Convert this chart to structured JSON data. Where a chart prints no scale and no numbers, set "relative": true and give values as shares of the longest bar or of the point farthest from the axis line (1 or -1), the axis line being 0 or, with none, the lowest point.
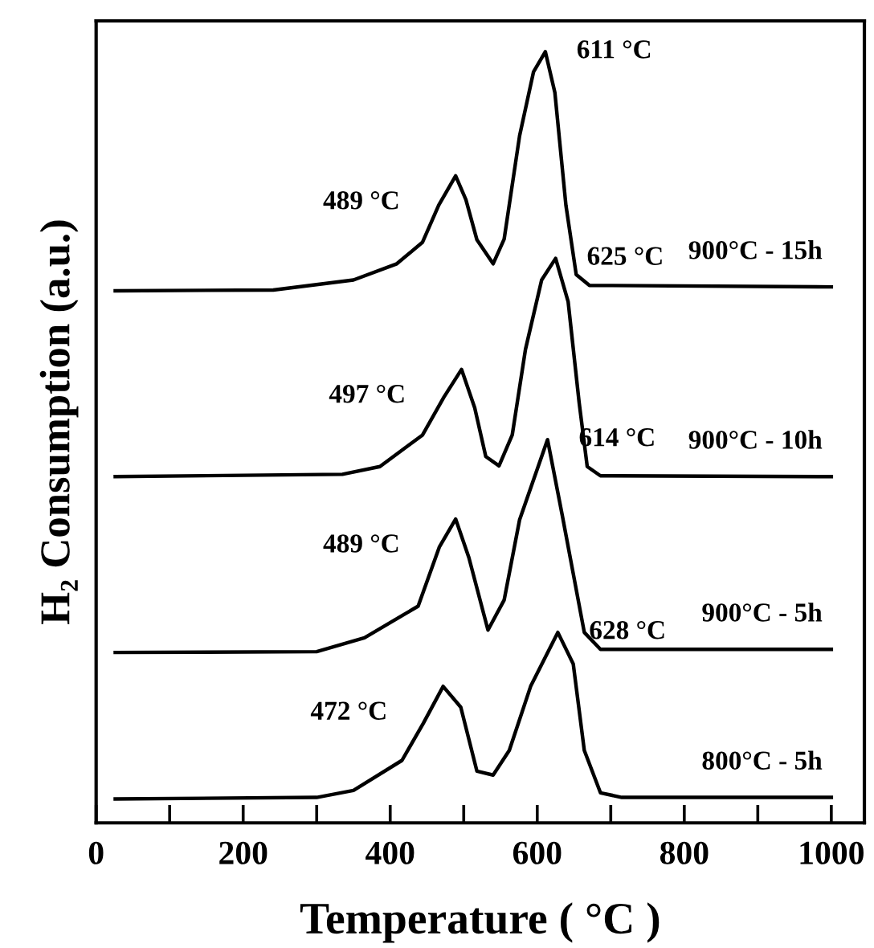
{
  "chart_data": {
    "type": "line",
    "relative": true,
    "xlabel": "Temperature ( °C )",
    "ylabel": "H₂ Consumption (a.u.)",
    "xlim": [
      0,
      1045
    ],
    "xticks": [
      0,
      {
        "value": 100,
        "label": null
      },
      200,
      {
        "value": 300,
        "label": null
      },
      400,
      {
        "value": 500,
        "label": null
      },
      600,
      {
        "value": 700,
        "label": null
      },
      800,
      {
        "value": 900,
        "label": null
      },
      1000
    ],
    "grid": false,
    "legend": false,
    "marker": "none",
    "line_style": "solid",
    "series": [
      {
        "name": "900°C - 15h",
        "color": "#000000",
        "x": [
          26,
          241,
          350,
          409,
          444,
          466,
          489,
          503,
          518,
          540,
          555,
          576,
          595,
          611,
          624,
          639,
          653,
          671,
          1000
        ],
        "values": [
          0.69,
          0.691,
          0.704,
          0.725,
          0.753,
          0.801,
          0.839,
          0.808,
          0.756,
          0.725,
          0.757,
          0.891,
          0.974,
          1.0,
          0.947,
          0.801,
          0.711,
          0.697,
          0.695
        ]
      },
      {
        "name": "900°C - 10h",
        "color": "#000000",
        "x": [
          26,
          335,
          386,
          444,
          473,
          497,
          515,
          530,
          548,
          566,
          584,
          606,
          625,
          642,
          657,
          668,
          686,
          1000
        ],
        "values": [
          0.449,
          0.452,
          0.462,
          0.503,
          0.552,
          0.588,
          0.538,
          0.475,
          0.463,
          0.503,
          0.614,
          0.704,
          0.732,
          0.676,
          0.545,
          0.462,
          0.45,
          0.449
        ]
      },
      {
        "name": "900°C - 5h",
        "color": "#000000",
        "x": [
          26,
          300,
          365,
          438,
          467,
          489,
          507,
          533,
          555,
          576,
          614,
          634,
          649,
          664,
          686,
          1000
        ],
        "values": [
          0.221,
          0.222,
          0.24,
          0.281,
          0.358,
          0.394,
          0.344,
          0.25,
          0.289,
          0.393,
          0.497,
          0.399,
          0.323,
          0.247,
          0.225,
          0.225
        ]
      },
      {
        "name": "800°C - 5h",
        "color": "#000000",
        "x": [
          26,
          300,
          350,
          416,
          445,
          472,
          496,
          518,
          540,
          562,
          591,
          628,
          649,
          664,
          686,
          715,
          1000
        ],
        "values": [
          0.031,
          0.033,
          0.042,
          0.081,
          0.129,
          0.177,
          0.15,
          0.067,
          0.062,
          0.094,
          0.177,
          0.247,
          0.206,
          0.094,
          0.039,
          0.033,
          0.033
        ]
      }
    ],
    "annotations": [
      {
        "text": "611 °C",
        "x": 611,
        "y": 1.0
      },
      {
        "text": "489 °C",
        "x": 489,
        "y": 0.839
      },
      {
        "text": "625 °C",
        "x": 625,
        "y": 0.732
      },
      {
        "text": "497 °C",
        "x": 497,
        "y": 0.588
      },
      {
        "text": "614 °C",
        "x": 614,
        "y": 0.497
      },
      {
        "text": "489 °C",
        "x": 489,
        "y": 0.394
      },
      {
        "text": "628 °C",
        "x": 628,
        "y": 0.247
      },
      {
        "text": "472 °C",
        "x": 472,
        "y": 0.177
      }
    ]
  }
}
